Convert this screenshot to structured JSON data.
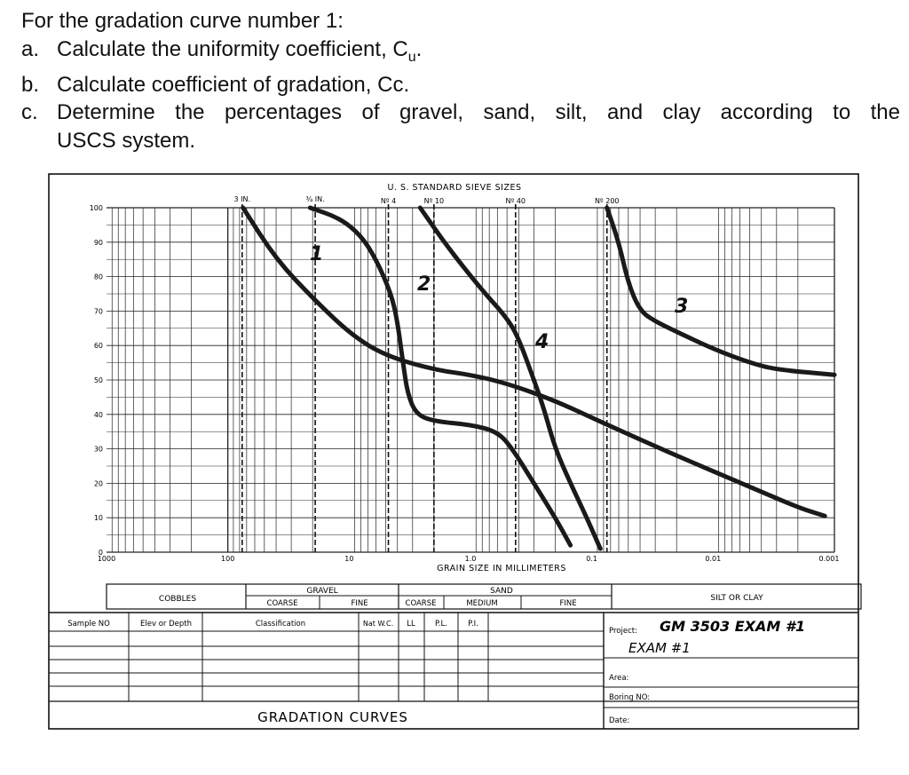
{
  "question": {
    "title": "For the gradation curve number 1:",
    "items": [
      {
        "label": "a.",
        "text": "Calculate the uniformity coefficient, C",
        "sub": "u",
        "tail": "."
      },
      {
        "label": "b.",
        "text": "Calculate coefficient of gradation, Cc."
      },
      {
        "label": "c.",
        "text_line1": "Determine the percentages of gravel, sand, silt, and clay according to the",
        "text_line2": "USCS system."
      }
    ]
  },
  "chart_data": {
    "type": "line",
    "x_scale": "log",
    "xlim": [
      1000,
      0.001
    ],
    "ylim": [
      0,
      100
    ],
    "grid": true,
    "xlabel": "GRAIN SIZE IN MILLIMETERS",
    "x_ticks": [
      {
        "value": 1000,
        "label": "1000"
      },
      {
        "value": 100,
        "label": "100"
      },
      {
        "value": 10,
        "label": "10"
      },
      {
        "value": 1,
        "label": "1.0"
      },
      {
        "value": 0.1,
        "label": "0.1"
      },
      {
        "value": 0.01,
        "label": "0.01"
      },
      {
        "value": 0.001,
        "label": "0.001"
      }
    ],
    "y_ticks": [
      {
        "value": 100,
        "label": "100"
      },
      {
        "value": 90,
        "label": "90"
      },
      {
        "value": 80,
        "label": "80"
      },
      {
        "value": 70,
        "label": "70"
      },
      {
        "value": 60,
        "label": "60"
      },
      {
        "value": 50,
        "label": "50"
      },
      {
        "value": 40,
        "label": "40"
      },
      {
        "value": 30,
        "label": "30"
      },
      {
        "value": 20,
        "label": "20"
      },
      {
        "value": 10,
        "label": "10"
      },
      {
        "value": 0,
        "label": "0"
      }
    ],
    "sieve_header": "U. S.  STANDARD  SIEVE  SIZES",
    "sieves": [
      {
        "label": "3 IN.",
        "size": 76.2
      },
      {
        "label": "3/4 IN.",
        "size": 19.05
      },
      {
        "label": "NO 4",
        "size": 4.75
      },
      {
        "label": "NO 10",
        "size": 2.0
      },
      {
        "label": "NO 40",
        "size": 0.425
      },
      {
        "label": "NO 200",
        "size": 0.075
      }
    ],
    "series": [
      {
        "name": "1",
        "points": [
          [
            75,
            100
          ],
          [
            40,
            85
          ],
          [
            19,
            73
          ],
          [
            9.5,
            63
          ],
          [
            5,
            57
          ],
          [
            2,
            53
          ],
          [
            1,
            51.5
          ],
          [
            0.5,
            49
          ],
          [
            0.2,
            44
          ],
          [
            0.075,
            37
          ],
          [
            0.02,
            28
          ],
          [
            0.005,
            19
          ],
          [
            0.002,
            13
          ],
          [
            0.0012,
            10.5
          ]
        ]
      },
      {
        "name": "2",
        "points": [
          [
            21,
            100
          ],
          [
            12,
            97
          ],
          [
            8,
            92
          ],
          [
            6,
            85
          ],
          [
            4.5,
            75
          ],
          [
            4,
            67
          ],
          [
            3.6,
            55
          ],
          [
            3.3,
            46
          ],
          [
            2.8,
            40
          ],
          [
            2,
            38
          ],
          [
            1,
            37
          ],
          [
            0.6,
            35
          ],
          [
            0.45,
            30
          ],
          [
            0.3,
            20
          ],
          [
            0.2,
            10
          ],
          [
            0.15,
            2
          ]
        ]
      },
      {
        "name": "3",
        "points": [
          [
            0.075,
            100
          ],
          [
            0.06,
            90
          ],
          [
            0.05,
            78
          ],
          [
            0.04,
            70
          ],
          [
            0.03,
            67
          ],
          [
            0.02,
            64
          ],
          [
            0.01,
            59
          ],
          [
            0.005,
            55
          ],
          [
            0.003,
            53
          ],
          [
            0.001,
            51.5
          ]
        ]
      },
      {
        "name": "4",
        "points": [
          [
            2.6,
            100
          ],
          [
            1.5,
            88
          ],
          [
            0.8,
            76
          ],
          [
            0.5,
            68
          ],
          [
            0.4,
            62
          ],
          [
            0.3,
            50
          ],
          [
            0.25,
            42
          ],
          [
            0.2,
            30
          ],
          [
            0.15,
            20
          ],
          [
            0.11,
            10
          ],
          [
            0.085,
            1
          ]
        ]
      }
    ]
  },
  "classification": {
    "cobbles": "COBBLES",
    "gravel": "GRAVEL",
    "gravel_coarse": "COARSE",
    "gravel_fine": "FINE",
    "sand": "SAND",
    "sand_coarse": "COARSE",
    "sand_medium": "MEDIUM",
    "sand_fine": "FINE",
    "silt_clay": "SILT  OR  CLAY"
  },
  "record_table": {
    "headers": [
      "Sample  NO",
      "Elev or Depth",
      "Classification",
      "Nat W.C.",
      "LL",
      "P.L.",
      "P.I."
    ],
    "project_label": "Project:",
    "project_value_line1": "GM 3503 EXAM #1",
    "project_value_line2": "EXAM #1",
    "area_label": "Area:",
    "boring_label": "Boring  NO:",
    "date_label": "Date:",
    "footer_title": "GRADATION  CURVES"
  },
  "colors": {
    "ink": "#111111",
    "grid": "#222222",
    "curve": "#1a1a1a",
    "paper": "#ffffff"
  }
}
